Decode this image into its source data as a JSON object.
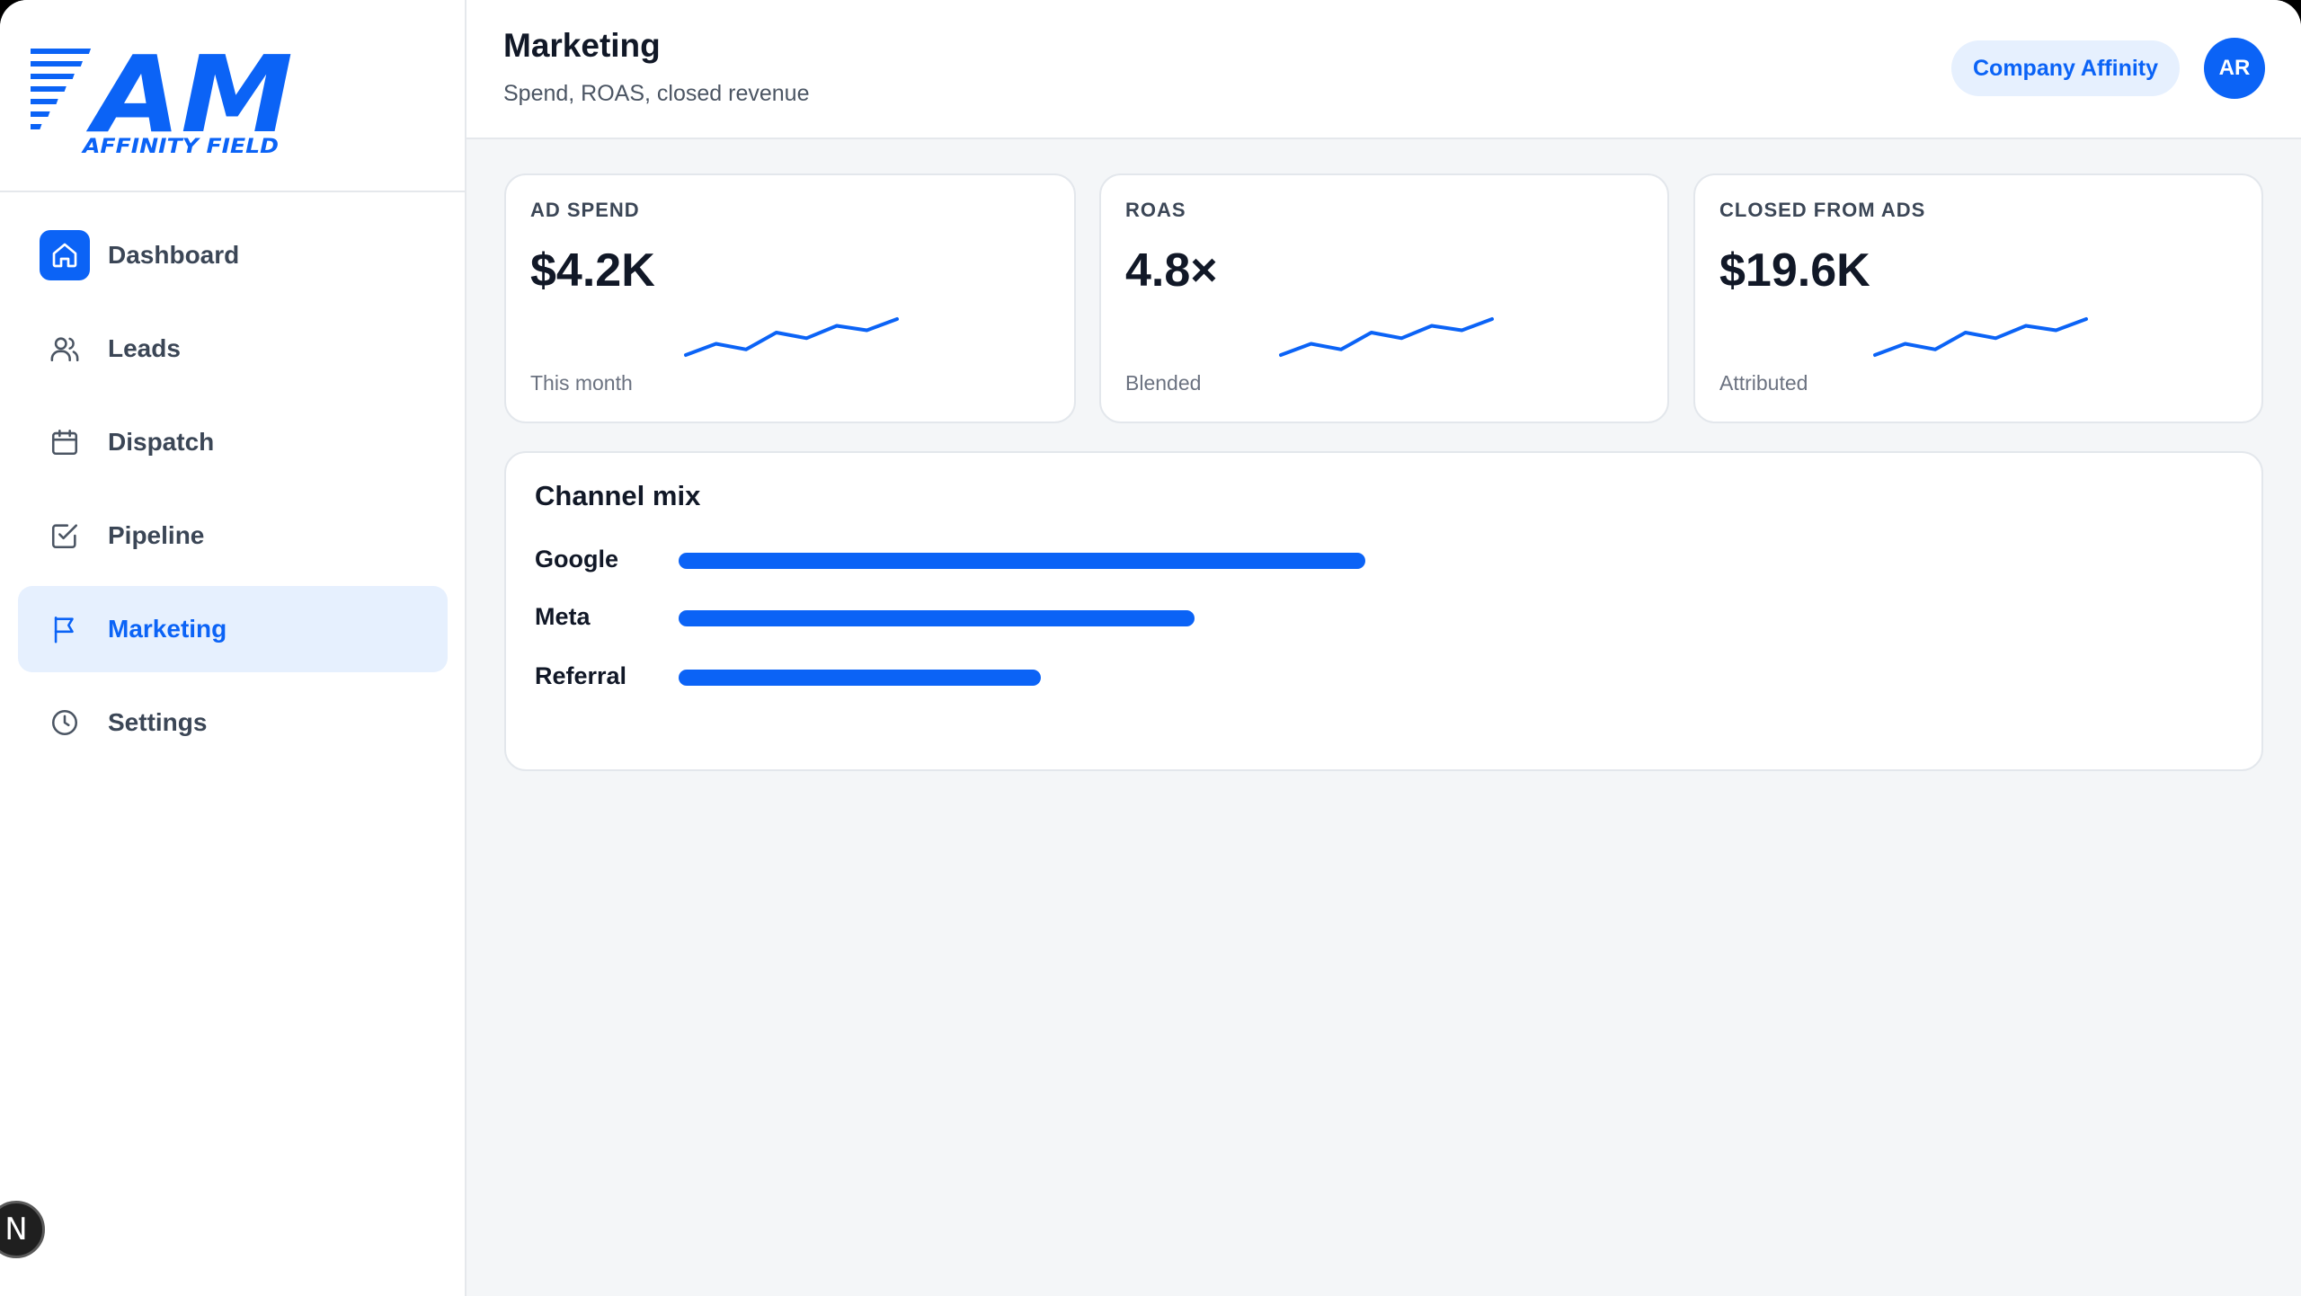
{
  "brand": {
    "logo_letters": "AM",
    "logo_tagline": "AFFINITY FIELD",
    "accent_color": "#0b63f6"
  },
  "sidebar": {
    "items": [
      {
        "label": "Dashboard",
        "icon": "home-icon",
        "active": false
      },
      {
        "label": "Leads",
        "icon": "users-icon",
        "active": false
      },
      {
        "label": "Dispatch",
        "icon": "calendar-icon",
        "active": false
      },
      {
        "label": "Pipeline",
        "icon": "check-square-icon",
        "active": false
      },
      {
        "label": "Marketing",
        "icon": "flag-icon",
        "active": true
      },
      {
        "label": "Settings",
        "icon": "clock-icon",
        "active": false
      }
    ],
    "dev_badge": "N"
  },
  "header": {
    "title": "Marketing",
    "subtitle": "Spend, ROAS, closed revenue",
    "company": "Company Affinity",
    "avatar_initials": "AR"
  },
  "kpis": [
    {
      "label": "AD SPEND",
      "value": "$4.2K",
      "sub": "This month",
      "trend": [
        2,
        3,
        2.5,
        4,
        3.5,
        4.6,
        4.2,
        5.2
      ]
    },
    {
      "label": "ROAS",
      "value": "4.8×",
      "sub": "Blended",
      "trend": [
        2,
        3,
        2.5,
        4,
        3.5,
        4.6,
        4.2,
        5.2
      ]
    },
    {
      "label": "CLOSED FROM ADS",
      "value": "$19.6K",
      "sub": "Attributed",
      "trend": [
        2,
        3,
        2.5,
        4,
        3.5,
        4.6,
        4.2,
        5.2
      ]
    }
  ],
  "channel_mix": {
    "title": "Channel mix",
    "channels": [
      {
        "name": "Google",
        "share": 0.413
      },
      {
        "name": "Meta",
        "share": 0.31
      },
      {
        "name": "Referral",
        "share": 0.218
      }
    ]
  }
}
